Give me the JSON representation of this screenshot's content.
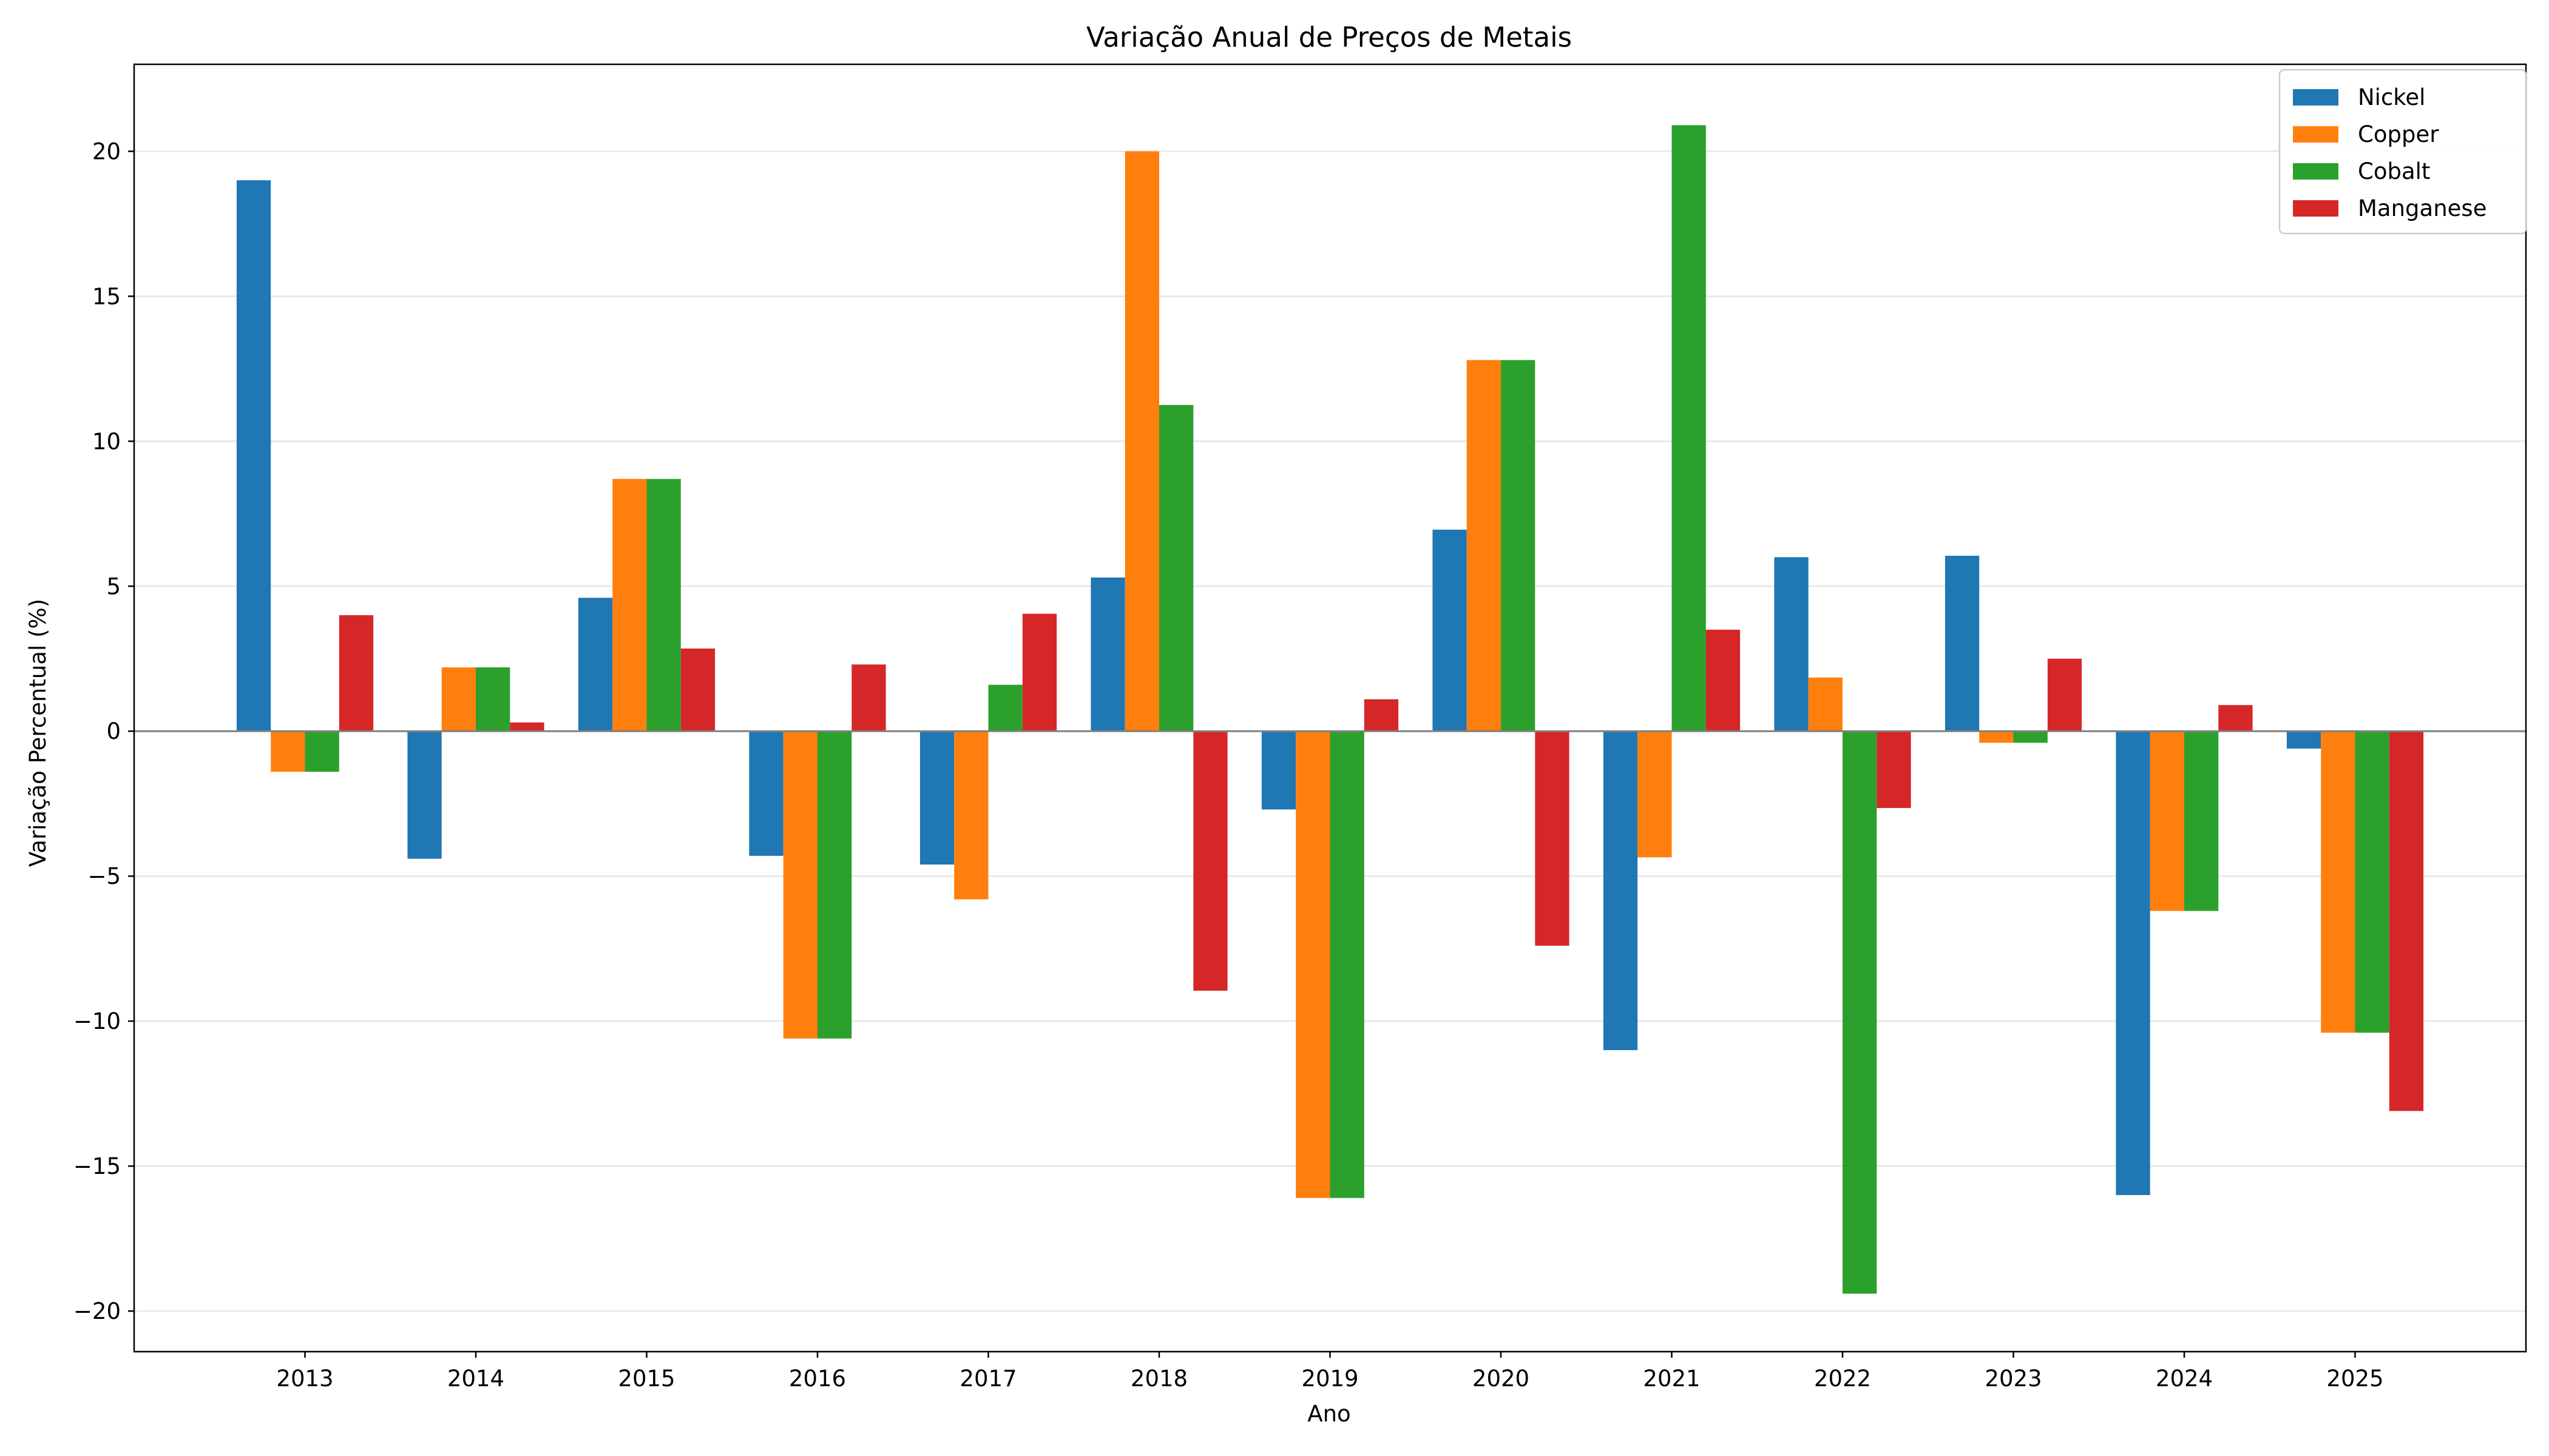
{
  "chart_data": {
    "type": "bar",
    "title": "Variação Anual de Preços de Metais",
    "xlabel": "Ano",
    "ylabel": "Variação Percentual (%)",
    "ylim": [
      -21.4,
      23.0
    ],
    "yticks": [
      -20,
      -15,
      -10,
      -5,
      0,
      5,
      10,
      15,
      20
    ],
    "ytick_labels": [
      "−20",
      "−15",
      "−10",
      "−5",
      "0",
      "5",
      "10",
      "15",
      "20"
    ],
    "grid": "horizontal",
    "zero_line": true,
    "legend_position": "top-right",
    "categories": [
      "2013",
      "2014",
      "2015",
      "2016",
      "2017",
      "2018",
      "2019",
      "2020",
      "2021",
      "2022",
      "2023",
      "2024",
      "2025"
    ],
    "series": [
      {
        "name": "Nickel",
        "color": "#1f77b4",
        "values": [
          19.0,
          -4.4,
          4.6,
          -4.3,
          -4.6,
          5.3,
          -2.7,
          6.95,
          -11.0,
          6.0,
          6.05,
          -16.0,
          -0.6
        ]
      },
      {
        "name": "Copper",
        "color": "#ff7f0e",
        "values": [
          -1.4,
          2.2,
          8.7,
          -10.6,
          -5.8,
          20.0,
          -16.1,
          12.8,
          -4.35,
          1.85,
          -0.4,
          -6.2,
          -10.4
        ]
      },
      {
        "name": "Cobalt",
        "color": "#2ca02c",
        "values": [
          -1.4,
          2.2,
          8.7,
          -10.6,
          1.6,
          11.25,
          -16.1,
          12.8,
          20.9,
          -19.4,
          -0.4,
          -6.2,
          -10.4
        ]
      },
      {
        "name": "Manganese",
        "color": "#d62728",
        "values": [
          4.0,
          0.3,
          2.85,
          2.3,
          4.05,
          -8.95,
          1.1,
          -7.4,
          3.5,
          -2.65,
          2.5,
          0.9,
          -13.1
        ]
      }
    ]
  }
}
